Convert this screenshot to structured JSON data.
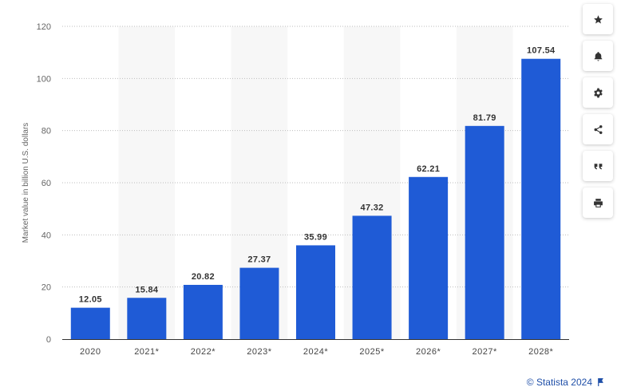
{
  "chart_data": {
    "type": "bar",
    "categories": [
      "2020",
      "2021*",
      "2022*",
      "2023*",
      "2024*",
      "2025*",
      "2026*",
      "2027*",
      "2028*"
    ],
    "values": [
      12.05,
      15.84,
      20.82,
      27.37,
      35.99,
      47.32,
      62.21,
      81.79,
      107.54
    ],
    "value_labels": [
      "12.05",
      "15.84",
      "20.82",
      "27.37",
      "35.99",
      "47.32",
      "62.21",
      "81.79",
      "107.54"
    ],
    "title": "",
    "xlabel": "",
    "ylabel": "Market value in billion U.S. dollars",
    "ylim": [
      0,
      120
    ],
    "yticks": [
      "0",
      "20",
      "40",
      "60",
      "80",
      "100",
      "120"
    ],
    "grid": true,
    "bar_color": "#1f5bd6",
    "alt_band_color": "#f7f7f7",
    "legend": "none"
  },
  "toolbar": {
    "icons": [
      "star-icon",
      "bell-icon",
      "gear-icon",
      "share-icon",
      "quote-icon",
      "print-icon"
    ]
  },
  "credit": {
    "text": "© Statista 2024",
    "color": "#1f4fa8"
  }
}
